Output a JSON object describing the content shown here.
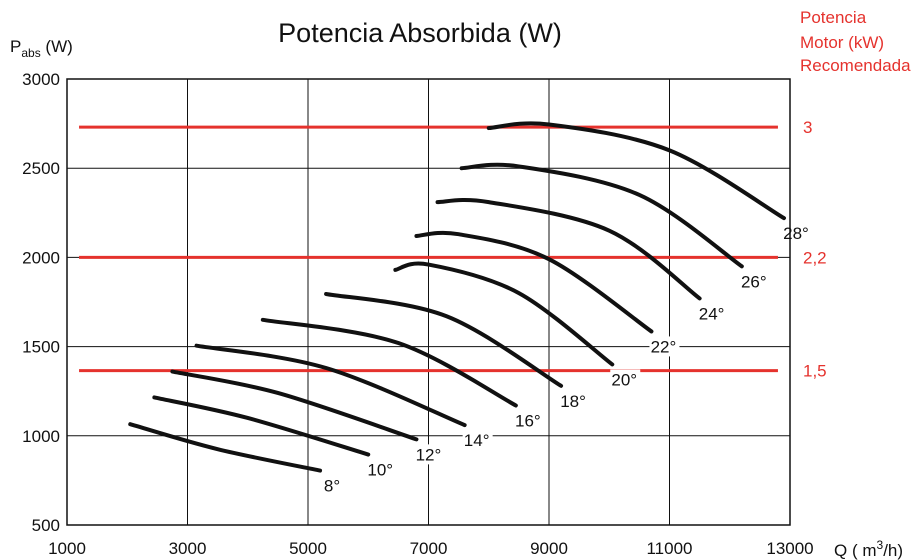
{
  "chart_data": {
    "type": "line",
    "title": "Potencia Absorbida (W)",
    "ylabel": {
      "main": "P",
      "sub": "abs",
      "unit": " (W)"
    },
    "xlabel": {
      "main": "Q  ( m",
      "sup": "3",
      "tail": "/h)"
    },
    "right_label": [
      "Potencia",
      "Motor (kW)",
      "Recomendada"
    ],
    "xlim": [
      1000,
      13000
    ],
    "ylim": [
      500,
      3000
    ],
    "xticks": [
      1000,
      3000,
      5000,
      7000,
      9000,
      11000,
      13000
    ],
    "yticks": [
      500,
      1000,
      1500,
      2000,
      2500,
      3000
    ],
    "grid": true,
    "colors": {
      "curves": "#111111",
      "motor_lines": "#e5322d"
    },
    "motor_lines": [
      {
        "label": "3",
        "y": 2730
      },
      {
        "label": "2,2",
        "y": 2000
      },
      {
        "label": "1,5",
        "y": 1365
      }
    ],
    "series": [
      {
        "name": "8°",
        "x": [
          2050,
          3500,
          5200
        ],
        "y": [
          1065,
          925,
          805
        ]
      },
      {
        "name": "10°",
        "x": [
          2450,
          4000,
          6000
        ],
        "y": [
          1215,
          1100,
          895
        ]
      },
      {
        "name": "12°",
        "x": [
          2750,
          4500,
          6800
        ],
        "y": [
          1360,
          1240,
          980
        ]
      },
      {
        "name": "14°",
        "x": [
          3150,
          5300,
          7600
        ],
        "y": [
          1505,
          1380,
          1060
        ]
      },
      {
        "name": "16°",
        "x": [
          4250,
          6500,
          8450
        ],
        "y": [
          1650,
          1520,
          1170
        ]
      },
      {
        "name": "18°",
        "x": [
          5300,
          7300,
          9200
        ],
        "y": [
          1795,
          1670,
          1280
        ]
      },
      {
        "name": "20°",
        "x": [
          6450,
          7000,
          8500,
          10050
        ],
        "y": [
          1930,
          1960,
          1800,
          1400
        ]
      },
      {
        "name": "22°",
        "x": [
          6800,
          7500,
          9000,
          10700
        ],
        "y": [
          2120,
          2130,
          1990,
          1585
        ]
      },
      {
        "name": "24°",
        "x": [
          7150,
          8000,
          10000,
          11500
        ],
        "y": [
          2310,
          2310,
          2150,
          1770
        ]
      },
      {
        "name": "26°",
        "x": [
          7550,
          8500,
          10500,
          12200
        ],
        "y": [
          2500,
          2510,
          2350,
          1950
        ]
      },
      {
        "name": "28°",
        "x": [
          8000,
          9000,
          11000,
          12900
        ],
        "y": [
          2725,
          2745,
          2600,
          2220
        ]
      }
    ]
  }
}
